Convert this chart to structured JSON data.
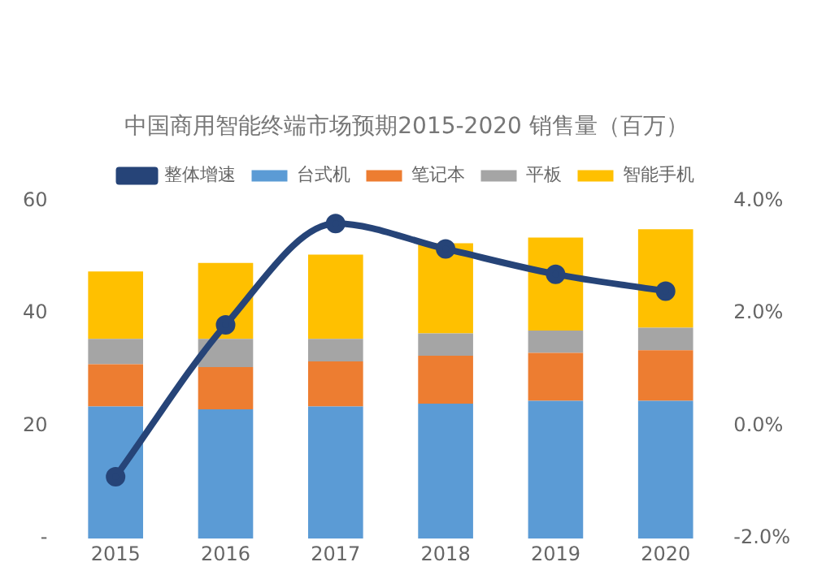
{
  "chart_data": {
    "type": "bar",
    "stacked": true,
    "title": "中国商用智能终端市场预期2015-2020 销售量（百万）",
    "categories": [
      "2015",
      "2016",
      "2017",
      "2018",
      "2019",
      "2020"
    ],
    "series": [
      {
        "name": "台式机",
        "color": "#5b9bd5",
        "values": [
          23.5,
          23,
          23.5,
          24,
          24.5,
          24.5
        ]
      },
      {
        "name": "笔记本",
        "color": "#ed7d31",
        "values": [
          7.5,
          7.5,
          8,
          8.5,
          8.5,
          9
        ]
      },
      {
        "name": "平板",
        "color": "#a5a5a5",
        "values": [
          4.5,
          5,
          4,
          4,
          4,
          4
        ]
      },
      {
        "name": "智能手机",
        "color": "#ffc000",
        "values": [
          12,
          13.5,
          15,
          16,
          16.5,
          17.5
        ]
      },
      {
        "name": "整体增速",
        "type": "line",
        "axis": "y2",
        "color": "#264478",
        "marker": "circle",
        "values": [
          -0.9,
          1.8,
          3.6,
          3.15,
          2.7,
          2.4
        ]
      }
    ],
    "ylim": [
      0,
      60
    ],
    "yticks": [
      {
        "value": 0,
        "label": "-"
      },
      20,
      40,
      60
    ],
    "y2lim": [
      -2,
      4
    ],
    "y2ticks": [
      {
        "value": -2,
        "label": "-2.0%"
      },
      {
        "value": 0,
        "label": "0.0%"
      },
      {
        "value": 2,
        "label": "2.0%"
      },
      {
        "value": 4,
        "label": "4.0%"
      }
    ],
    "legend": "top",
    "grid": false
  }
}
